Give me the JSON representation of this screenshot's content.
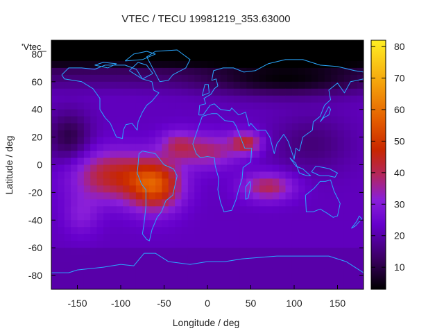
{
  "chart_data": {
    "type": "heatmap",
    "title": "VTEC / TECU 19981219_353.63000",
    "xlabel": "Longitude / deg",
    "ylabel": "Latitude / deg",
    "legend_label": "'Vtec_",
    "xlim": [
      -180,
      180
    ],
    "ylim": [
      -90,
      90
    ],
    "x_ticks": [
      -150,
      -100,
      -50,
      0,
      50,
      100,
      150
    ],
    "y_ticks": [
      -80,
      -60,
      -40,
      -20,
      0,
      20,
      40,
      60,
      80
    ],
    "colorbar": {
      "range": [
        3,
        82
      ],
      "ticks": [
        10,
        20,
        30,
        40,
        50,
        60,
        70,
        80
      ]
    },
    "field_description": {
      "background_level": 22,
      "high_latitude_level": 6,
      "peak_region": {
        "lon": -60,
        "lat": -15,
        "value": 62
      },
      "secondary_peaks": [
        {
          "lon": -120,
          "lat": -10,
          "value": 48
        },
        {
          "lon": 20,
          "lat": 10,
          "value": 42
        },
        {
          "lon": 45,
          "lat": 15,
          "value": 50
        },
        {
          "lon": 70,
          "lat": -15,
          "value": 45
        }
      ]
    }
  }
}
